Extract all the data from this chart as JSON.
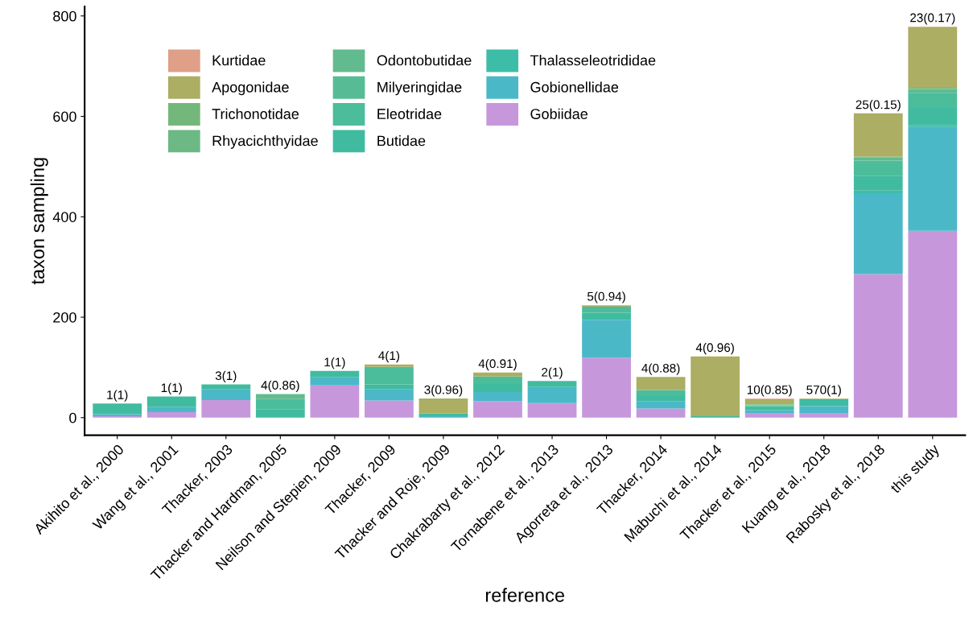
{
  "chart_data": {
    "type": "bar",
    "stacked": true,
    "xlabel": "reference",
    "ylabel": "taxon sampling",
    "categories": [
      "Akihito et al., 2000",
      "Wang et al., 2001",
      "Thacker, 2003",
      "Thacker and Hardman, 2005",
      "Neilson and Stepien, 2009",
      "Thacker, 2009",
      "Thacker and Roje, 2009",
      "Chakrabarty et al., 2012",
      "Tornabene et al., 2013",
      "Agorreta et al., 2013",
      "Thacker, 2014",
      "Mabuchi et al., 2014",
      "Thacker et al., 2015",
      "Kuang et al., 2018",
      "Rabosky et al., 2018",
      "this study"
    ],
    "series": [
      {
        "name": "Gobiidae",
        "color": "#c797dc",
        "values": [
          3,
          11,
          35,
          null,
          64,
          34,
          null,
          33,
          29,
          119,
          18,
          null,
          8,
          8,
          286,
          372
        ]
      },
      {
        "name": "Gobionellidae",
        "color": "#4bb8c8",
        "values": [
          4,
          10,
          21,
          null,
          16,
          22,
          3,
          18,
          32,
          76,
          15,
          null,
          7,
          15,
          161,
          207
        ]
      },
      {
        "name": "Thalasseleotrididae",
        "color": "#3dbda8",
        "values": [
          null,
          null,
          null,
          null,
          null,
          null,
          null,
          null,
          null,
          2,
          null,
          null,
          null,
          null,
          5,
          3
        ]
      },
      {
        "name": "Butidae",
        "color": "#40bba0",
        "values": [
          21,
          21,
          10,
          17,
          13,
          10,
          5,
          16,
          12,
          12,
          10,
          3,
          4,
          14,
          30,
          35
        ]
      },
      {
        "name": "Eleotridae",
        "color": "#4bbd9b",
        "values": [
          null,
          null,
          null,
          20,
          null,
          35,
          null,
          15,
          null,
          12,
          12,
          null,
          4,
          null,
          30,
          30
        ]
      },
      {
        "name": "Milyeringidae",
        "color": "#57bc95",
        "values": [
          null,
          null,
          null,
          null,
          null,
          null,
          null,
          null,
          null,
          null,
          null,
          null,
          1,
          null,
          null,
          2
        ]
      },
      {
        "name": "Odontobutidae",
        "color": "#62bb8e",
        "values": [
          null,
          null,
          null,
          10,
          null,
          null,
          null,
          null,
          null,
          null,
          null,
          null,
          1,
          null,
          6,
          5
        ]
      },
      {
        "name": "Rhyacichthyidae",
        "color": "#6cb985",
        "values": [
          null,
          null,
          null,
          null,
          null,
          null,
          null,
          null,
          null,
          null,
          null,
          null,
          1,
          null,
          1,
          1
        ]
      },
      {
        "name": "Trichonotidae",
        "color": "#74b77b",
        "values": [
          null,
          null,
          null,
          null,
          null,
          null,
          null,
          null,
          null,
          null,
          null,
          null,
          1,
          null,
          1,
          2
        ]
      },
      {
        "name": "Apogonidae",
        "color": "#abae63",
        "values": [
          null,
          null,
          null,
          null,
          null,
          5,
          30,
          8,
          null,
          2,
          26,
          119,
          10,
          1,
          86,
          121
        ]
      },
      {
        "name": "Kurtidae",
        "color": "#e09f87",
        "values": [
          null,
          null,
          null,
          null,
          null,
          null,
          null,
          null,
          null,
          1,
          null,
          null,
          1,
          null,
          null,
          1
        ]
      }
    ],
    "totals": [
      "1(1)",
      "1(1)",
      "3(1)",
      "4(0.86)",
      "1(1)",
      "4(1)",
      "3(0.96)",
      "4(0.91)",
      "2(1)",
      "5(0.94)",
      "4(0.88)",
      "4(0.96)",
      "10(0.85)",
      "570(1)",
      "25(0.15)",
      "23(0.17)"
    ],
    "ylim": [
      -35,
      819
    ],
    "yticks": [
      0,
      200,
      400,
      600,
      800
    ],
    "grid": false,
    "legend": "top left"
  }
}
